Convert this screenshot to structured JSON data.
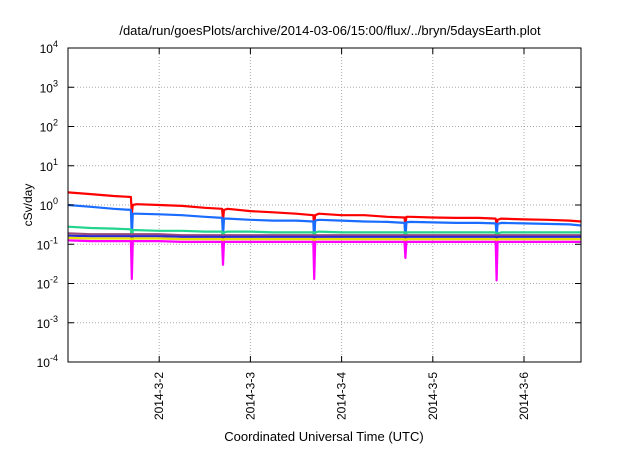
{
  "chart_data": {
    "type": "line",
    "title": "/data/run/goesPlots/archive/2014-03-06/15:00/flux/../bryn/5daysEarth.plot",
    "xlabel": "Coordinated Universal Time (UTC)",
    "ylabel": "cSv/day",
    "yscale": "log",
    "ylim": [
      0.0001,
      10000
    ],
    "xlim_days_from_2014_03_01": [
      0,
      5.625
    ],
    "grid": true,
    "y_ticks": [
      {
        "exp": -4,
        "base": "10",
        "sup": "-4"
      },
      {
        "exp": -3,
        "base": "10",
        "sup": "-3"
      },
      {
        "exp": -2,
        "base": "10",
        "sup": "-2"
      },
      {
        "exp": -1,
        "base": "10",
        "sup": "-1"
      },
      {
        "exp": 0,
        "base": "10",
        "sup": "0"
      },
      {
        "exp": 1,
        "base": "10",
        "sup": "1"
      },
      {
        "exp": 2,
        "base": "10",
        "sup": "2"
      },
      {
        "exp": 3,
        "base": "10",
        "sup": "3"
      },
      {
        "exp": 4,
        "base": "10",
        "sup": "4"
      }
    ],
    "x_ticks": [
      {
        "value": 1,
        "label": "2014-3-2"
      },
      {
        "value": 2,
        "label": "2014-3-3"
      },
      {
        "value": 3,
        "label": "2014-3-4"
      },
      {
        "value": 4,
        "label": "2014-3-5"
      },
      {
        "value": 5,
        "label": "2014-3-6"
      }
    ],
    "x": [
      0,
      0.25,
      0.5,
      0.69,
      0.7,
      0.71,
      0.75,
      1.0,
      1.25,
      1.5,
      1.69,
      1.7,
      1.71,
      1.75,
      2.0,
      2.25,
      2.5,
      2.69,
      2.7,
      2.71,
      2.75,
      3.0,
      3.25,
      3.5,
      3.69,
      3.7,
      3.71,
      3.75,
      4.0,
      4.25,
      4.5,
      4.69,
      4.7,
      4.71,
      4.75,
      5.0,
      5.25,
      5.5,
      5.625
    ],
    "series": [
      {
        "name": "red",
        "color": "#ff0000",
        "values": [
          2.1,
          1.9,
          1.7,
          1.6,
          0.6,
          1.0,
          1.05,
          1.0,
          0.95,
          0.85,
          0.8,
          0.4,
          0.75,
          0.8,
          0.7,
          0.65,
          0.6,
          0.55,
          0.3,
          0.55,
          0.6,
          0.55,
          0.55,
          0.5,
          0.48,
          0.3,
          0.5,
          0.5,
          0.48,
          0.47,
          0.47,
          0.45,
          0.3,
          0.42,
          0.45,
          0.43,
          0.42,
          0.4,
          0.38
        ]
      },
      {
        "name": "blue",
        "color": "#1a6cff",
        "values": [
          1.0,
          0.9,
          0.8,
          0.75,
          0.15,
          0.6,
          0.6,
          0.58,
          0.55,
          0.5,
          0.47,
          0.15,
          0.45,
          0.45,
          0.42,
          0.4,
          0.4,
          0.38,
          0.12,
          0.4,
          0.42,
          0.4,
          0.38,
          0.37,
          0.35,
          0.13,
          0.36,
          0.37,
          0.36,
          0.35,
          0.35,
          0.34,
          0.15,
          0.33,
          0.35,
          0.34,
          0.33,
          0.32,
          0.3
        ]
      },
      {
        "name": "green",
        "color": "#22d48e",
        "values": [
          0.28,
          0.26,
          0.25,
          0.24,
          0.1,
          0.23,
          0.23,
          0.22,
          0.22,
          0.21,
          0.21,
          0.1,
          0.2,
          0.21,
          0.21,
          0.2,
          0.2,
          0.2,
          0.1,
          0.2,
          0.21,
          0.2,
          0.2,
          0.2,
          0.2,
          0.1,
          0.2,
          0.2,
          0.2,
          0.2,
          0.2,
          0.2,
          0.1,
          0.19,
          0.2,
          0.2,
          0.2,
          0.2,
          0.2
        ]
      },
      {
        "name": "purple",
        "color": "#9a4a7a",
        "values": [
          0.19,
          0.18,
          0.18,
          0.18,
          0.08,
          0.18,
          0.18,
          0.18,
          0.17,
          0.17,
          0.17,
          0.08,
          0.17,
          0.17,
          0.17,
          0.17,
          0.17,
          0.17,
          0.08,
          0.17,
          0.17,
          0.17,
          0.17,
          0.17,
          0.17,
          0.08,
          0.17,
          0.17,
          0.17,
          0.17,
          0.17,
          0.17,
          0.08,
          0.17,
          0.17,
          0.17,
          0.17,
          0.17,
          0.17
        ]
      },
      {
        "name": "dark-blue",
        "color": "#2a2ad0",
        "values": [
          0.165,
          0.16,
          0.16,
          0.16,
          0.07,
          0.16,
          0.16,
          0.16,
          0.155,
          0.155,
          0.155,
          0.07,
          0.155,
          0.155,
          0.155,
          0.155,
          0.155,
          0.155,
          0.07,
          0.155,
          0.155,
          0.155,
          0.155,
          0.155,
          0.155,
          0.07,
          0.155,
          0.155,
          0.155,
          0.155,
          0.155,
          0.155,
          0.07,
          0.155,
          0.155,
          0.155,
          0.155,
          0.155,
          0.155
        ]
      },
      {
        "name": "yellow",
        "color": "#e8e000",
        "values": [
          0.145,
          0.14,
          0.14,
          0.14,
          0.06,
          0.14,
          0.14,
          0.14,
          0.135,
          0.135,
          0.135,
          0.06,
          0.135,
          0.135,
          0.135,
          0.135,
          0.135,
          0.135,
          0.06,
          0.135,
          0.135,
          0.135,
          0.135,
          0.135,
          0.135,
          0.06,
          0.135,
          0.135,
          0.135,
          0.135,
          0.135,
          0.135,
          0.06,
          0.135,
          0.135,
          0.135,
          0.135,
          0.135,
          0.135
        ]
      },
      {
        "name": "magenta",
        "color": "#ff00ff",
        "values": [
          0.125,
          0.12,
          0.12,
          0.12,
          0.013,
          0.12,
          0.12,
          0.12,
          0.115,
          0.115,
          0.115,
          0.03,
          0.115,
          0.115,
          0.115,
          0.115,
          0.115,
          0.115,
          0.013,
          0.115,
          0.115,
          0.115,
          0.115,
          0.115,
          0.115,
          0.045,
          0.115,
          0.115,
          0.115,
          0.115,
          0.115,
          0.115,
          0.012,
          0.115,
          0.115,
          0.115,
          0.115,
          0.115,
          0.115
        ]
      }
    ]
  }
}
